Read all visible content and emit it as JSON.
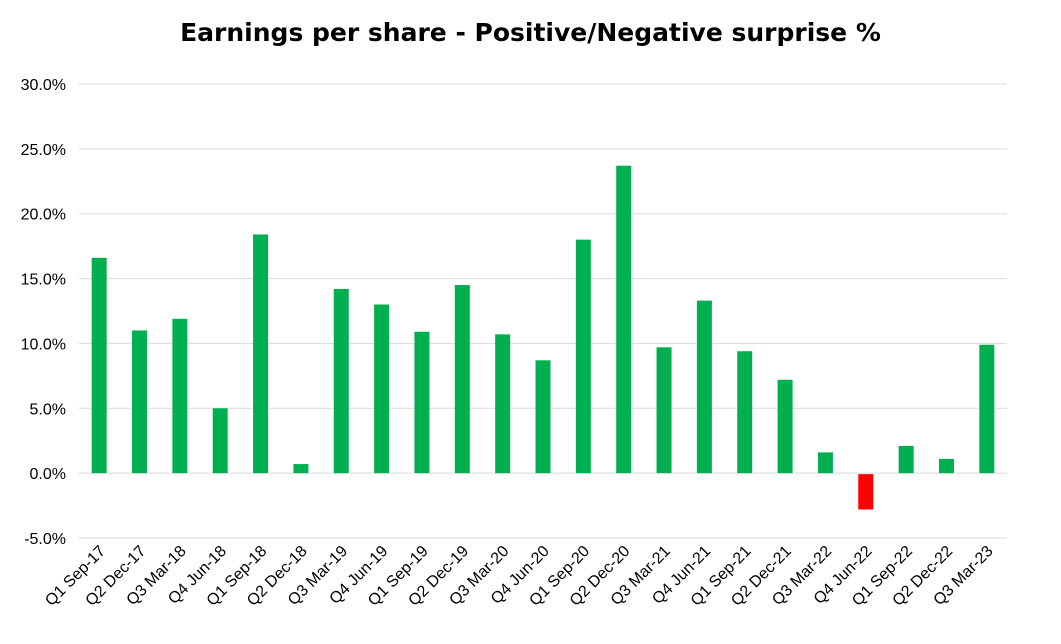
{
  "chart_data": {
    "type": "bar",
    "title": "Earnings per share - Positive/Negative surprise %",
    "xlabel": "",
    "ylabel": "",
    "categories": [
      "Q1 Sep-17",
      "Q2 Dec-17",
      "Q3 Mar-18",
      "Q4 Jun-18",
      "Q1 Sep-18",
      "Q2 Dec-18",
      "Q3 Mar-19",
      "Q4 Jun-19",
      "Q1 Sep-19",
      "Q2 Dec-19",
      "Q3 Mar-20",
      "Q4 Jun-20",
      "Q1 Sep-20",
      "Q2 Dec-20",
      "Q3 Mar-21",
      "Q4 Jun-21",
      "Q1 Sep-21",
      "Q2 Dec-21",
      "Q3 Mar-22",
      "Q4 Jun-22",
      "Q1 Sep-22",
      "Q2 Dec-22",
      "Q3 Mar-23"
    ],
    "values": [
      16.6,
      11.0,
      11.9,
      5.0,
      18.4,
      0.7,
      14.2,
      13.0,
      10.9,
      14.5,
      10.7,
      8.7,
      18.0,
      23.7,
      9.7,
      13.3,
      9.4,
      7.2,
      1.6,
      -2.8,
      2.1,
      1.1,
      9.9
    ],
    "ylim": [
      -5,
      30
    ],
    "yticks": [
      30,
      25,
      20,
      15,
      10,
      5,
      0,
      -5
    ],
    "ytick_labels": [
      "30.0%",
      "25.0%",
      "20.0%",
      "15.0%",
      "10.0%",
      "5.0%",
      "0.0%",
      "-5.0%"
    ],
    "grid": true,
    "legend": "none",
    "colors": {
      "positive": "#00B050",
      "negative": "#FF0000",
      "grid": "#D9D9D9"
    }
  }
}
